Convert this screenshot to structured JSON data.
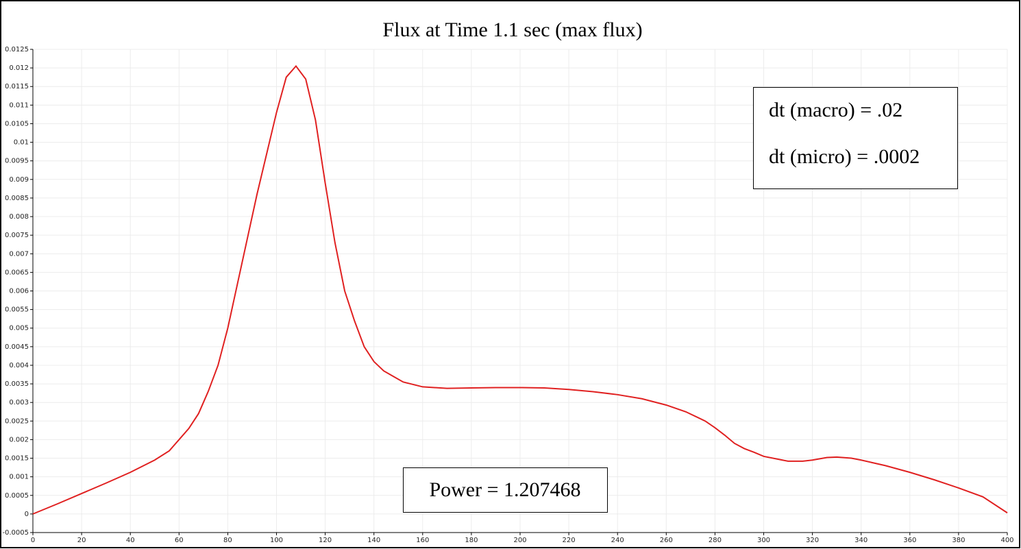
{
  "chart_data": {
    "type": "line",
    "title": "Flux at Time 1.1 sec (max flux)",
    "x": [
      0,
      10,
      20,
      30,
      40,
      50,
      56,
      60,
      64,
      68,
      72,
      76,
      80,
      84,
      88,
      92,
      96,
      100,
      104,
      108,
      112,
      116,
      120,
      124,
      128,
      132,
      136,
      140,
      144,
      148,
      152,
      160,
      170,
      180,
      190,
      200,
      210,
      220,
      230,
      240,
      250,
      260,
      268,
      276,
      280,
      284,
      288,
      292,
      296,
      300,
      310,
      316,
      320,
      326,
      330,
      336,
      340,
      350,
      360,
      370,
      380,
      390,
      400
    ],
    "values": [
      0,
      0.00027,
      0.00055,
      0.00083,
      0.00112,
      0.00145,
      0.0017,
      0.002,
      0.0023,
      0.0027,
      0.0033,
      0.004,
      0.005,
      0.0062,
      0.0074,
      0.0086,
      0.0097,
      0.0108,
      0.01175,
      0.01205,
      0.0117,
      0.0106,
      0.0089,
      0.0073,
      0.006,
      0.0052,
      0.0045,
      0.0041,
      0.00385,
      0.0037,
      0.00355,
      0.00342,
      0.00338,
      0.00339,
      0.0034,
      0.0034,
      0.00339,
      0.00335,
      0.00329,
      0.00321,
      0.0031,
      0.00293,
      0.00275,
      0.0025,
      0.00232,
      0.00212,
      0.0019,
      0.00176,
      0.00166,
      0.00155,
      0.00142,
      0.00142,
      0.00145,
      0.00152,
      0.00153,
      0.0015,
      0.00145,
      0.0013,
      0.00112,
      0.00092,
      0.0007,
      0.00046,
      3e-05
    ],
    "color": "#e02020",
    "xlim": [
      0,
      400
    ],
    "xticks": [
      0,
      20,
      40,
      60,
      80,
      100,
      120,
      140,
      160,
      180,
      200,
      220,
      240,
      260,
      280,
      300,
      320,
      340,
      360,
      380,
      400
    ],
    "ylim": [
      -0.0005,
      0.0125
    ],
    "yticks": [
      -0.0005,
      0,
      0.0005,
      0.001,
      0.0015,
      0.002,
      0.0025,
      0.003,
      0.0035,
      0.004,
      0.0045,
      0.005,
      0.0055,
      0.006,
      0.0065,
      0.007,
      0.0075,
      0.008,
      0.0085,
      0.009,
      0.0095,
      0.01,
      0.0105,
      0.011,
      0.0115,
      0.012,
      0.0125
    ],
    "grid": true,
    "annotations": [
      "dt (macro) = .02",
      "dt (micro) = .0002",
      "Power = 1.207468"
    ]
  }
}
